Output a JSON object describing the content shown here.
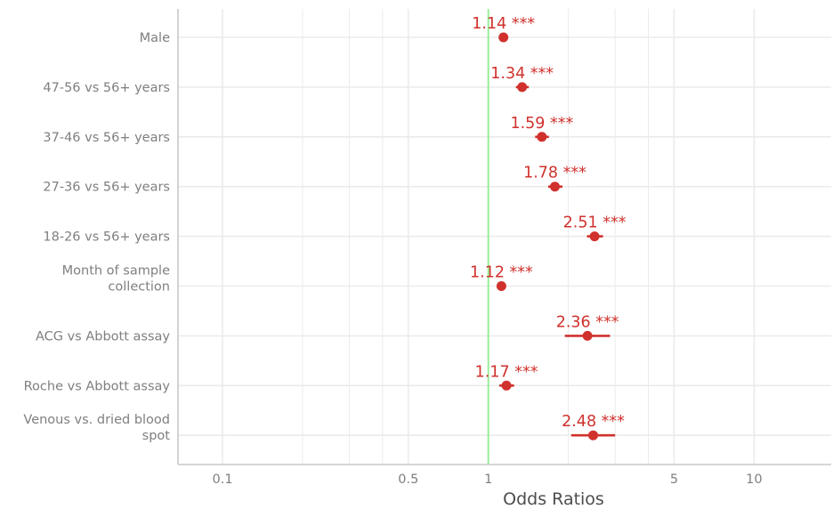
{
  "chart_data": {
    "type": "forest",
    "xlabel": "Odds Ratios",
    "x_scale": "log10",
    "xlim": [
      0.068,
      19.5
    ],
    "x_ticks": [
      {
        "value": 0.1,
        "label": "0.1"
      },
      {
        "value": 0.5,
        "label": "0.5"
      },
      {
        "value": 1,
        "label": "1"
      },
      {
        "value": 5,
        "label": "5"
      },
      {
        "value": 10,
        "label": "10"
      }
    ],
    "minor_grid": [
      0.05,
      0.2,
      0.3,
      0.4,
      2,
      3,
      4,
      20
    ],
    "reference_line": 1,
    "colors": {
      "estimate": "#d0312d",
      "reference": "#90ee90",
      "grid": "#ebebeb",
      "axis": "#c8c8c8"
    },
    "rows": [
      {
        "label_lines": [
          "Male"
        ],
        "estimate": 1.14,
        "ci": [
          1.11,
          1.17
        ],
        "label": "1.14 ***"
      },
      {
        "label_lines": [
          "47-56 vs 56+ years"
        ],
        "estimate": 1.34,
        "ci": [
          1.27,
          1.42
        ],
        "label": "1.34 ***"
      },
      {
        "label_lines": [
          "37-46 vs 56+ years"
        ],
        "estimate": 1.59,
        "ci": [
          1.5,
          1.69
        ],
        "label": "1.59 ***"
      },
      {
        "label_lines": [
          "27-36 vs 56+ years"
        ],
        "estimate": 1.78,
        "ci": [
          1.68,
          1.9
        ],
        "label": "1.78 ***"
      },
      {
        "label_lines": [
          "18-26 vs 56+ years"
        ],
        "estimate": 2.51,
        "ci": [
          2.35,
          2.7
        ],
        "label": "2.51 ***"
      },
      {
        "label_lines": [
          "Month of sample",
          "collection"
        ],
        "estimate": 1.12,
        "ci": [
          1.1,
          1.14
        ],
        "label": "1.12 ***"
      },
      {
        "label_lines": [
          "ACG vs Abbott assay"
        ],
        "estimate": 2.36,
        "ci": [
          1.94,
          2.87
        ],
        "label": "2.36 ***"
      },
      {
        "label_lines": [
          "Roche vs Abbott assay"
        ],
        "estimate": 1.17,
        "ci": [
          1.1,
          1.25
        ],
        "label": "1.17 ***"
      },
      {
        "label_lines": [
          "Venous vs. dried blood",
          "spot"
        ],
        "estimate": 2.48,
        "ci": [
          2.05,
          3.0
        ],
        "label": "2.48 ***"
      }
    ]
  }
}
